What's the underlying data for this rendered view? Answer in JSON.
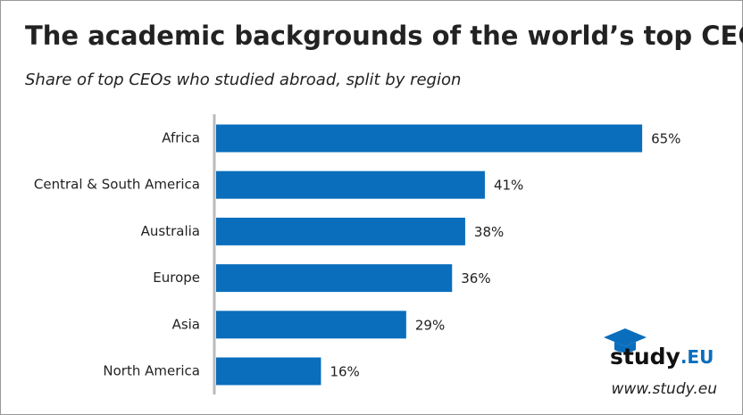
{
  "chart_data": {
    "type": "hbar",
    "title": "The academic backgrounds of the world’s top CEOs",
    "subtitle": "Share of top CEOs who studied abroad, split by region",
    "categories": [
      "Africa",
      "Central & South America",
      "Australia",
      "Europe",
      "Asia",
      "North America"
    ],
    "values": [
      65,
      41,
      38,
      36,
      29,
      16
    ],
    "value_labels": [
      "65%",
      "41%",
      "38%",
      "36%",
      "29%",
      "16%"
    ],
    "color": "#0a6ebd"
  },
  "logo": {
    "name": "study",
    "suffix": ".EU",
    "website": "www.study.eu"
  }
}
